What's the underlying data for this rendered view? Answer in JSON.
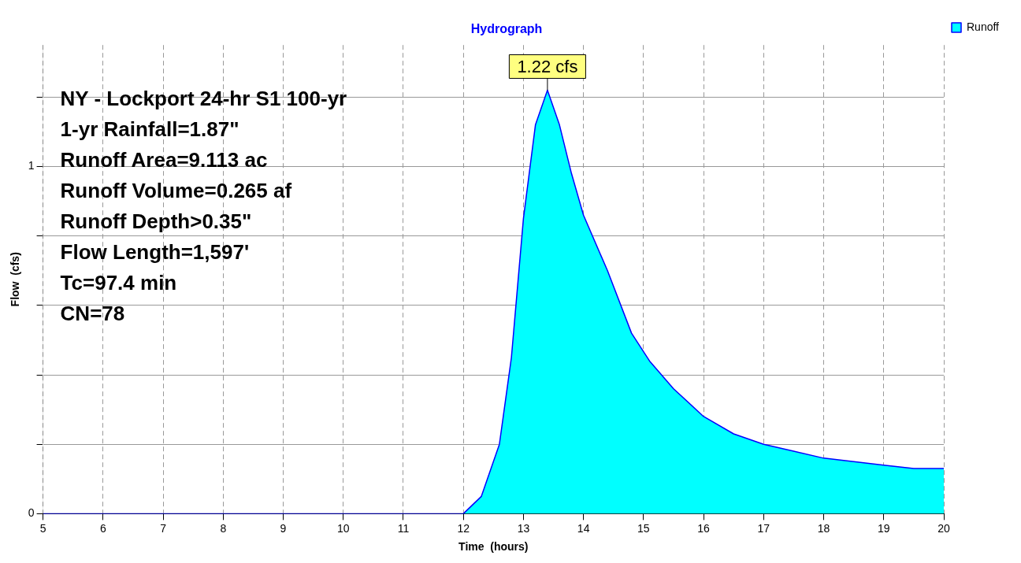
{
  "chart_data": {
    "type": "area",
    "title": "Hydrograph",
    "xlabel": "Time  (hours)",
    "ylabel": "Flow  (cfs)",
    "x": [
      5,
      12,
      12.3,
      12.6,
      12.8,
      13,
      13.2,
      13.4,
      13.6,
      13.8,
      14,
      14.4,
      14.8,
      15.1,
      15.5,
      16,
      16.5,
      17,
      17.5,
      18,
      18.5,
      19,
      19.5,
      20
    ],
    "series": [
      {
        "name": "Runoff",
        "color": "#00ffff",
        "values": [
          0,
          0,
          0.05,
          0.2,
          0.45,
          0.85,
          1.12,
          1.22,
          1.12,
          0.98,
          0.86,
          0.7,
          0.52,
          0.44,
          0.36,
          0.28,
          0.23,
          0.2,
          0.18,
          0.16,
          0.15,
          0.14,
          0.13,
          0.13
        ]
      }
    ],
    "xlim": [
      5,
      20
    ],
    "xticks": [
      5,
      6,
      7,
      8,
      9,
      10,
      11,
      12,
      13,
      14,
      15,
      16,
      17,
      18,
      19,
      20
    ],
    "ylim": [
      0,
      1.35
    ],
    "yticks": [
      0,
      {
        "value": 0.2,
        "label": null
      },
      {
        "value": 0.4,
        "label": null
      },
      {
        "value": 0.6,
        "label": null
      },
      {
        "value": 0.8,
        "label": null
      },
      1,
      {
        "value": 1.2,
        "label": null
      }
    ],
    "annotations": [
      {
        "text": "1.22 cfs",
        "x": 13.4,
        "y": 1.22
      },
      "NY - Lockport 24-hr S1 100-yr",
      "1-yr Rainfall=1.87\"",
      "Runoff Area=9.113 ac",
      "Runoff Volume=0.265 af",
      "Runoff Depth>0.35\"",
      "Flow Length=1,597'",
      "Tc=97.4 min",
      "CN=78"
    ],
    "grid": true,
    "legend": "top right",
    "marker": "none",
    "line_style": "solid"
  }
}
